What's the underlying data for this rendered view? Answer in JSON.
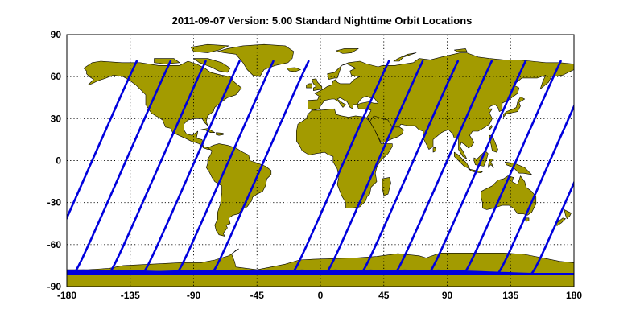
{
  "title": "2011-09-07    Version: 5.00  Standard    Nighttime Orbit Locations",
  "map": {
    "lon_range": [
      -180,
      180
    ],
    "lat_range": [
      -90,
      90
    ],
    "x_ticks": [
      "-180",
      "-135",
      "-90",
      "-45",
      "0",
      "45",
      "90",
      "135",
      "180"
    ],
    "y_ticks": [
      "90",
      "60",
      "30",
      "0",
      "-30",
      "-60",
      "-90"
    ],
    "grid": true,
    "land_color": "#a39b00",
    "orbit_color": "#0000dd",
    "background_color": "#ffffff"
  },
  "orbits": {
    "equator_crossing_longitudes": [
      -162,
      -138,
      -113,
      -89,
      -65,
      -40,
      17,
      41,
      66,
      90,
      114,
      139,
      163
    ],
    "wrap_crossing_longitude": 187,
    "track_lat_range": [
      -81,
      71
    ],
    "converging_lat": -81
  }
}
